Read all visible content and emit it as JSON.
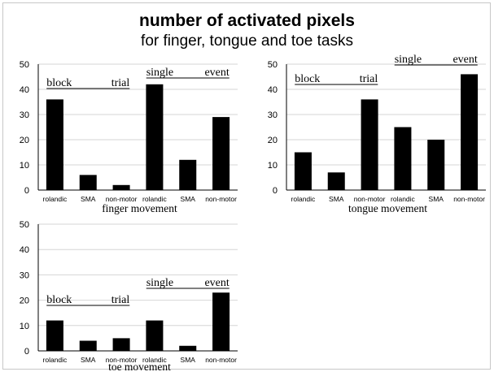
{
  "figure": {
    "title": "number of activated pixels",
    "subtitle": "for finger, tongue and toe tasks"
  },
  "chart_data": [
    {
      "type": "bar",
      "xlabel": "finger movement",
      "ylabel": "",
      "ylim": [
        0,
        50
      ],
      "yticks": [
        0,
        10,
        20,
        30,
        40,
        50
      ],
      "grid": true,
      "categories": [
        "rolandic",
        "SMA",
        "non-motor",
        "rolandic",
        "SMA",
        "non-motor"
      ],
      "values": [
        36,
        6,
        2,
        42,
        12,
        29
      ],
      "groups": [
        {
          "words": [
            "block",
            "trial"
          ],
          "categories": [
            0,
            2
          ]
        },
        {
          "words": [
            "single",
            "event"
          ],
          "categories": [
            3,
            5
          ]
        }
      ]
    },
    {
      "type": "bar",
      "xlabel": "tongue movement",
      "ylabel": "",
      "ylim": [
        0,
        50
      ],
      "yticks": [
        0,
        10,
        20,
        30,
        40,
        50
      ],
      "grid": true,
      "categories": [
        "rolandic",
        "SMA",
        "non-motor",
        "rolandic",
        "SMA",
        "non-motor"
      ],
      "values": [
        15,
        7,
        36,
        25,
        20,
        46
      ],
      "groups": [
        {
          "words": [
            "block",
            "trial"
          ],
          "categories": [
            0,
            2
          ]
        },
        {
          "words": [
            "single",
            "event"
          ],
          "categories": [
            3,
            5
          ]
        }
      ]
    },
    {
      "type": "bar",
      "xlabel": "toe movement",
      "ylabel": "",
      "ylim": [
        0,
        50
      ],
      "yticks": [
        0,
        10,
        20,
        30,
        40,
        50
      ],
      "grid": true,
      "categories": [
        "rolandic",
        "SMA",
        "non-motor",
        "rolandic",
        "SMA",
        "non-motor"
      ],
      "values": [
        12,
        4,
        5,
        12,
        2,
        23
      ],
      "groups": [
        {
          "words": [
            "block",
            "trial"
          ],
          "categories": [
            0,
            2
          ]
        },
        {
          "words": [
            "single",
            "event"
          ],
          "categories": [
            3,
            5
          ]
        }
      ]
    }
  ]
}
